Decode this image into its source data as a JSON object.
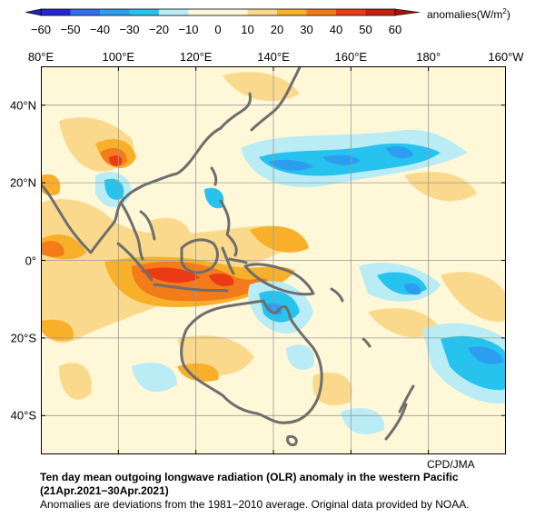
{
  "colorbar": {
    "ticks": [
      "−60",
      "−50",
      "−40",
      "−30",
      "−20",
      "−10",
      "0",
      "10",
      "20",
      "30",
      "40",
      "50",
      "60"
    ],
    "units": "anomalies(W/m",
    "units_sup": "2",
    "units_close": ")",
    "colors": [
      "#2525d8",
      "#2f6ff0",
      "#2b9ef0",
      "#27c3ef",
      "#b9ecf4",
      "#fff8d8",
      "#fff8d8",
      "#fbd98c",
      "#f8b02a",
      "#f37b19",
      "#ec3b14",
      "#c81e0e"
    ]
  },
  "map": {
    "lon_labels": [
      "80°E",
      "100°E",
      "120°E",
      "140°E",
      "160°E",
      "180°",
      "160°W"
    ],
    "lat_labels": [
      "40°N",
      "20°N",
      "0°",
      "20°S",
      "40°S"
    ],
    "lon_range": [
      80,
      200
    ],
    "lat_range": [
      -50,
      50
    ],
    "coast_color": "#6e6e6e",
    "grid_color": "#9a9a9a"
  },
  "credit": "CPD/JMA",
  "caption": {
    "title": "Ten day mean outgoing longwave radiation (OLR) anomaly in the western Pacific",
    "period": "(21Apr.2021−30Apr.2021)",
    "note": "Anomalies are deviations from the 1981−2010 average. Original data provided by NOAA."
  }
}
